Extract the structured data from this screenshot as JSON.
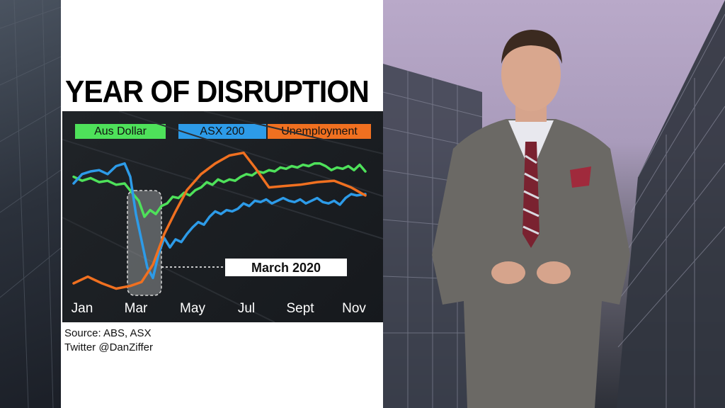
{
  "title": "YEAR OF DISRUPTION",
  "source_lines": [
    "Source: ABS, ASX",
    "Twitter @DanZiffer"
  ],
  "annotation": "March 2020",
  "colors": {
    "aus_dollar": "#4ee15a",
    "asx_200": "#2d9be8",
    "unemployment": "#f07020",
    "panel_bg": "#ffffff",
    "chart_bg": "#1a1d21"
  },
  "chart_data": {
    "type": "line",
    "title": "YEAR OF DISRUPTION",
    "xlabel": "",
    "ylabel": "",
    "x_ticks": [
      "Jan",
      "Mar",
      "May",
      "Jul",
      "Sept",
      "Nov"
    ],
    "x_range": [
      0,
      10.5
    ],
    "y_range": [
      0,
      100
    ],
    "legend": [
      "Aus Dollar",
      "ASX 200",
      "Unemployment"
    ],
    "legend_position": "top",
    "highlight": {
      "label": "March 2020",
      "x_range": [
        1.9,
        3.1
      ]
    },
    "series": [
      {
        "name": "Aus Dollar",
        "color": "#4ee15a",
        "points": [
          [
            0,
            88
          ],
          [
            0.3,
            85
          ],
          [
            0.6,
            87
          ],
          [
            0.9,
            84
          ],
          [
            1.2,
            85
          ],
          [
            1.5,
            82
          ],
          [
            1.8,
            83
          ],
          [
            2.1,
            75
          ],
          [
            2.3,
            70
          ],
          [
            2.5,
            58
          ],
          [
            2.7,
            63
          ],
          [
            2.9,
            60
          ],
          [
            3.1,
            66
          ],
          [
            3.3,
            68
          ],
          [
            3.5,
            73
          ],
          [
            3.7,
            72
          ],
          [
            3.9,
            76
          ],
          [
            4.1,
            74
          ],
          [
            4.3,
            78
          ],
          [
            4.5,
            80
          ],
          [
            4.7,
            84
          ],
          [
            4.9,
            82
          ],
          [
            5.1,
            86
          ],
          [
            5.3,
            84
          ],
          [
            5.5,
            86
          ],
          [
            5.7,
            85
          ],
          [
            5.9,
            88
          ],
          [
            6.1,
            90
          ],
          [
            6.3,
            89
          ],
          [
            6.5,
            92
          ],
          [
            6.7,
            91
          ],
          [
            6.9,
            93
          ],
          [
            7.1,
            92
          ],
          [
            7.3,
            95
          ],
          [
            7.5,
            94
          ],
          [
            7.7,
            96
          ],
          [
            7.9,
            95
          ],
          [
            8.1,
            97
          ],
          [
            8.3,
            96
          ],
          [
            8.5,
            98
          ],
          [
            8.7,
            98
          ],
          [
            8.9,
            96
          ],
          [
            9.1,
            93
          ],
          [
            9.3,
            95
          ],
          [
            9.5,
            94
          ],
          [
            9.7,
            96
          ],
          [
            9.9,
            93
          ],
          [
            10.1,
            97
          ],
          [
            10.3,
            92
          ]
        ]
      },
      {
        "name": "ASX 200",
        "color": "#2d9be8",
        "points": [
          [
            0,
            83
          ],
          [
            0.3,
            90
          ],
          [
            0.6,
            92
          ],
          [
            0.9,
            93
          ],
          [
            1.2,
            90
          ],
          [
            1.5,
            96
          ],
          [
            1.8,
            98
          ],
          [
            2.0,
            88
          ],
          [
            2.2,
            60
          ],
          [
            2.4,
            40
          ],
          [
            2.6,
            20
          ],
          [
            2.8,
            12
          ],
          [
            3.0,
            30
          ],
          [
            3.2,
            42
          ],
          [
            3.4,
            35
          ],
          [
            3.6,
            41
          ],
          [
            3.8,
            39
          ],
          [
            4.0,
            45
          ],
          [
            4.2,
            50
          ],
          [
            4.4,
            54
          ],
          [
            4.6,
            52
          ],
          [
            4.8,
            58
          ],
          [
            5.0,
            62
          ],
          [
            5.2,
            60
          ],
          [
            5.4,
            63
          ],
          [
            5.6,
            62
          ],
          [
            5.8,
            64
          ],
          [
            6.0,
            68
          ],
          [
            6.2,
            66
          ],
          [
            6.4,
            70
          ],
          [
            6.6,
            69
          ],
          [
            6.8,
            71
          ],
          [
            7.0,
            68
          ],
          [
            7.2,
            70
          ],
          [
            7.4,
            72
          ],
          [
            7.6,
            70
          ],
          [
            7.8,
            69
          ],
          [
            8.0,
            71
          ],
          [
            8.2,
            68
          ],
          [
            8.4,
            70
          ],
          [
            8.6,
            72
          ],
          [
            8.8,
            69
          ],
          [
            9.0,
            68
          ],
          [
            9.2,
            70
          ],
          [
            9.4,
            67
          ],
          [
            9.6,
            72
          ],
          [
            9.8,
            75
          ],
          [
            10.0,
            74
          ],
          [
            10.3,
            75
          ]
        ]
      },
      {
        "name": "Unemployment",
        "color": "#f07020",
        "points": [
          [
            0,
            8
          ],
          [
            0.5,
            13
          ],
          [
            1.0,
            8
          ],
          [
            1.5,
            4
          ],
          [
            2.0,
            6
          ],
          [
            2.4,
            9
          ],
          [
            2.8,
            22
          ],
          [
            3.2,
            45
          ],
          [
            3.6,
            62
          ],
          [
            4.0,
            78
          ],
          [
            4.5,
            90
          ],
          [
            5.0,
            98
          ],
          [
            5.5,
            104
          ],
          [
            6.0,
            106
          ],
          [
            6.4,
            95
          ],
          [
            6.9,
            80
          ],
          [
            7.4,
            81
          ],
          [
            8.0,
            82
          ],
          [
            8.6,
            84
          ],
          [
            9.2,
            85
          ],
          [
            9.8,
            80
          ],
          [
            10.3,
            74
          ]
        ]
      }
    ]
  }
}
